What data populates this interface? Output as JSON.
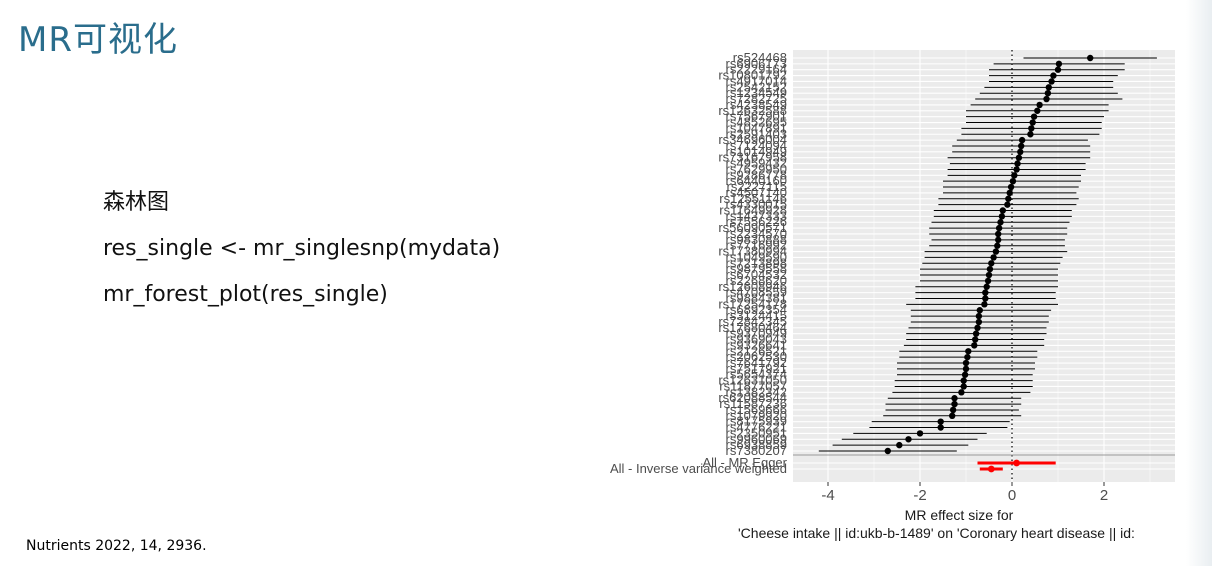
{
  "slide": {
    "title": "MR可视化",
    "code_lines": [
      "森林图",
      "res_single <- mr_singlesnp(mydata)",
      "mr_forest_plot(res_single)"
    ],
    "citation": "Nutrients 2022, 14, 2936."
  },
  "chart_data": {
    "type": "forest",
    "xlabel": "MR effect size for",
    "xlabel_line2": "'Cheese intake || id:ukb-b-1489' on 'Coronary heart disease || id:",
    "xlim": [
      -4.8,
      3.5
    ],
    "xticks": [
      -4,
      -2,
      0,
      2
    ],
    "reference_line": 0,
    "grid": true,
    "colors": {
      "snp": "#000000",
      "summary": "#ff0000",
      "panel": "#ebebeb"
    },
    "snps": [
      {
        "label": "rs524468",
        "b": 1.7,
        "lo": 0.25,
        "hi": 3.15
      },
      {
        "label": "rs6906173",
        "b": 1.02,
        "lo": -0.4,
        "hi": 2.45
      },
      {
        "label": "rs2229164",
        "b": 1.0,
        "lo": -0.5,
        "hi": 2.45
      },
      {
        "label": "rs10801792",
        "b": 0.9,
        "lo": -0.5,
        "hi": 2.3
      },
      {
        "label": "rs4917014",
        "b": 0.86,
        "lo": -0.5,
        "hi": 2.2
      },
      {
        "label": "rs2542152",
        "b": 0.8,
        "lo": -0.6,
        "hi": 2.2
      },
      {
        "label": "rs1234549",
        "b": 0.78,
        "lo": -0.7,
        "hi": 2.3
      },
      {
        "label": "rs7282725",
        "b": 0.75,
        "lo": -0.8,
        "hi": 2.4
      },
      {
        "label": "rs4238549",
        "b": 0.6,
        "lo": -0.9,
        "hi": 2.1
      },
      {
        "label": "rs12632588",
        "b": 0.55,
        "lo": -1.0,
        "hi": 2.1
      },
      {
        "label": "rs7567901",
        "b": 0.48,
        "lo": -1.0,
        "hi": 2.0
      },
      {
        "label": "rs4852695",
        "b": 0.45,
        "lo": -1.0,
        "hi": 1.95
      },
      {
        "label": "rs1047891",
        "b": 0.42,
        "lo": -1.1,
        "hi": 1.95
      },
      {
        "label": "rs2591403",
        "b": 0.4,
        "lo": -1.1,
        "hi": 1.9
      },
      {
        "label": "rs34696004",
        "b": 0.22,
        "lo": -1.2,
        "hi": 1.65
      },
      {
        "label": "rs7124094",
        "b": 0.2,
        "lo": -1.3,
        "hi": 1.7
      },
      {
        "label": "rs1014949",
        "b": 0.18,
        "lo": -1.3,
        "hi": 1.7
      },
      {
        "label": "rs73167958",
        "b": 0.15,
        "lo": -1.4,
        "hi": 1.7
      },
      {
        "label": "rs4959432",
        "b": 0.12,
        "lo": -1.35,
        "hi": 1.6
      },
      {
        "label": "rs7629950",
        "b": 0.1,
        "lo": -1.4,
        "hi": 1.6
      },
      {
        "label": "rs9286778",
        "b": 0.05,
        "lo": -1.4,
        "hi": 1.5
      },
      {
        "label": "rs6440160",
        "b": 0.02,
        "lo": -1.5,
        "hi": 1.5
      },
      {
        "label": "rs2227115",
        "b": -0.02,
        "lo": -1.5,
        "hi": 1.45
      },
      {
        "label": "rs4507140",
        "b": -0.05,
        "lo": -1.5,
        "hi": 1.4
      },
      {
        "label": "rs12551146",
        "b": -0.08,
        "lo": -1.6,
        "hi": 1.45
      },
      {
        "label": "rs4330015",
        "b": -0.1,
        "lo": -1.6,
        "hi": 1.4
      },
      {
        "label": "rs11649928",
        "b": -0.2,
        "lo": -1.7,
        "hi": 1.3
      },
      {
        "label": "rs1437333",
        "b": -0.22,
        "lo": -1.7,
        "hi": 1.3
      },
      {
        "label": "rs7556226",
        "b": -0.25,
        "lo": -1.75,
        "hi": 1.25
      },
      {
        "label": "rs56090571",
        "b": -0.28,
        "lo": -1.8,
        "hi": 1.2
      },
      {
        "label": "rs2234570",
        "b": -0.3,
        "lo": -1.8,
        "hi": 1.2
      },
      {
        "label": "rs9830888",
        "b": -0.3,
        "lo": -1.75,
        "hi": 1.15
      },
      {
        "label": "rs7716992",
        "b": -0.32,
        "lo": -1.8,
        "hi": 1.15
      },
      {
        "label": "rs17380994",
        "b": -0.35,
        "lo": -1.9,
        "hi": 1.2
      },
      {
        "label": "rs1049590",
        "b": -0.4,
        "lo": -1.9,
        "hi": 1.1
      },
      {
        "label": "rs7213898",
        "b": -0.45,
        "lo": -1.95,
        "hi": 1.05
      },
      {
        "label": "rs9879558",
        "b": -0.48,
        "lo": -2.0,
        "hi": 1.0
      },
      {
        "label": "rs6704532",
        "b": -0.5,
        "lo": -2.0,
        "hi": 1.0
      },
      {
        "label": "rs2268620",
        "b": -0.52,
        "lo": -2.0,
        "hi": 1.0
      },
      {
        "label": "rs12608946",
        "b": -0.55,
        "lo": -2.1,
        "hi": 1.0
      },
      {
        "label": "rs4708559",
        "b": -0.58,
        "lo": -2.1,
        "hi": 0.95
      },
      {
        "label": "rs9884381",
        "b": -0.58,
        "lo": -2.1,
        "hi": 0.95
      },
      {
        "label": "rs17254178",
        "b": -0.6,
        "lo": -2.3,
        "hi": 1.0
      },
      {
        "label": "rs6892354",
        "b": -0.7,
        "lo": -2.2,
        "hi": 0.85
      },
      {
        "label": "rs3124415",
        "b": -0.72,
        "lo": -2.2,
        "hi": 0.8
      },
      {
        "label": "rs72842345",
        "b": -0.72,
        "lo": -2.2,
        "hi": 0.8
      },
      {
        "label": "rs17680464",
        "b": -0.75,
        "lo": -2.25,
        "hi": 0.75
      },
      {
        "label": "rs9370949",
        "b": -0.78,
        "lo": -2.3,
        "hi": 0.75
      },
      {
        "label": "rs9369043",
        "b": -0.8,
        "lo": -2.3,
        "hi": 0.7
      },
      {
        "label": "rs9326641",
        "b": -0.82,
        "lo": -2.35,
        "hi": 0.7
      },
      {
        "label": "rs2126521",
        "b": -0.95,
        "lo": -2.45,
        "hi": 0.55
      },
      {
        "label": "rs2062530",
        "b": -0.97,
        "lo": -2.45,
        "hi": 0.55
      },
      {
        "label": "rs7641792",
        "b": -1.0,
        "lo": -2.5,
        "hi": 0.5
      },
      {
        "label": "rs7517921",
        "b": -1.0,
        "lo": -2.5,
        "hi": 0.5
      },
      {
        "label": "rs5654374",
        "b": -1.02,
        "lo": -2.5,
        "hi": 0.45
      },
      {
        "label": "rs12631050",
        "b": -1.05,
        "lo": -2.55,
        "hi": 0.45
      },
      {
        "label": "rs11877057",
        "b": -1.05,
        "lo": -2.55,
        "hi": 0.45
      },
      {
        "label": "rs1382342",
        "b": -1.1,
        "lo": -2.6,
        "hi": 0.4
      },
      {
        "label": "rs62088544",
        "b": -1.25,
        "lo": -2.7,
        "hi": 0.2
      },
      {
        "label": "rs11587236",
        "b": -1.25,
        "lo": -2.75,
        "hi": 0.2
      },
      {
        "label": "rs1569666",
        "b": -1.28,
        "lo": -2.75,
        "hi": 0.15
      },
      {
        "label": "rs1079920",
        "b": -1.3,
        "lo": -2.8,
        "hi": 0.2
      },
      {
        "label": "rs8175939",
        "b": -1.55,
        "lo": -3.05,
        "hi": -0.05
      },
      {
        "label": "rs4776221",
        "b": -1.55,
        "lo": -3.1,
        "hi": -0.1
      },
      {
        "label": "rs2350951",
        "b": -2.0,
        "lo": -3.45,
        "hi": -0.55
      },
      {
        "label": "rs9960069",
        "b": -2.25,
        "lo": -3.7,
        "hi": -0.75
      },
      {
        "label": "rs6938859",
        "b": -2.45,
        "lo": -3.9,
        "hi": -0.95
      },
      {
        "label": "rs7380207",
        "b": -2.7,
        "lo": -4.2,
        "hi": -1.2
      }
    ],
    "summary": [
      {
        "label": "All - MR Egger",
        "b": 0.1,
        "lo": -0.75,
        "hi": 0.95
      },
      {
        "label": "All - Inverse variance weighted",
        "b": -0.45,
        "lo": -0.7,
        "hi": -0.2
      }
    ]
  }
}
